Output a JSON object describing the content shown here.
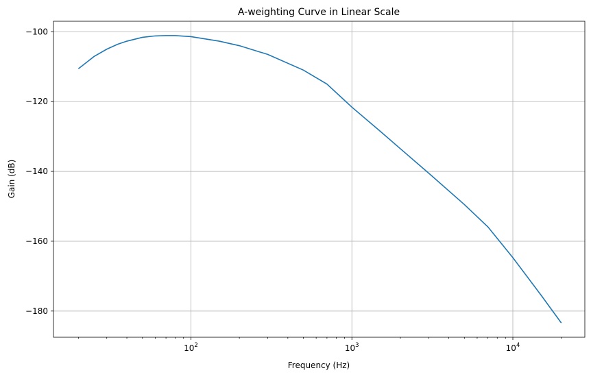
{
  "chart_data": {
    "type": "line",
    "title": "A-weighting Curve in Linear Scale",
    "xlabel": "Frequency (Hz)",
    "ylabel": "Gain (dB)",
    "xscale": "log",
    "xlim": [
      14,
      28000
    ],
    "ylim": [
      -187.5,
      -97
    ],
    "grid": true,
    "legend": "none",
    "colors": {
      "line": "#1f77b4",
      "grid": "#b0b0b0",
      "axis": "#000000"
    },
    "x_ticks": [
      {
        "value": 100,
        "base": "10",
        "exp": "2"
      },
      {
        "value": 1000,
        "base": "10",
        "exp": "3"
      },
      {
        "value": 10000,
        "base": "10",
        "exp": "4"
      }
    ],
    "y_ticks": [
      {
        "value": -100,
        "label": "−100"
      },
      {
        "value": -120,
        "label": "−120"
      },
      {
        "value": -140,
        "label": "−140"
      },
      {
        "value": -160,
        "label": "−160"
      },
      {
        "value": -180,
        "label": "−180"
      }
    ],
    "series": [
      {
        "x": [
          20,
          25,
          30,
          35,
          40,
          50,
          60,
          70,
          80,
          100,
          150,
          200,
          300,
          500,
          700,
          1000,
          1500,
          2000,
          3000,
          5000,
          7000,
          10000,
          15000,
          20000
        ],
        "y": [
          -110.6,
          -107.1,
          -105.0,
          -103.6,
          -102.7,
          -101.6,
          -101.2,
          -101.1,
          -101.1,
          -101.4,
          -102.7,
          -104.0,
          -106.5,
          -111.0,
          -115.0,
          -121.6,
          -128.5,
          -133.5,
          -140.5,
          -149.5,
          -155.9,
          -164.7,
          -175.5,
          -183.4
        ]
      }
    ]
  }
}
